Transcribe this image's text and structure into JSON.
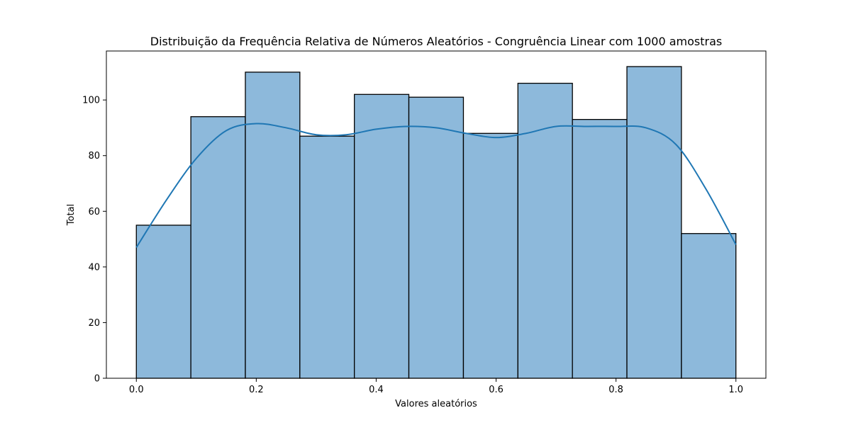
{
  "chart_data": {
    "type": "bar",
    "title": "Distribuição da Frequência Relativa de Números Aleatórios - Congruência Linear com 1000 amostras",
    "xlabel": "Valores aleatórios",
    "ylabel": "Total",
    "bins": [
      {
        "x0": 0.0,
        "x1": 0.0909,
        "value": 55
      },
      {
        "x0": 0.0909,
        "x1": 0.1818,
        "value": 94
      },
      {
        "x0": 0.1818,
        "x1": 0.2727,
        "value": 110
      },
      {
        "x0": 0.2727,
        "x1": 0.3636,
        "value": 87
      },
      {
        "x0": 0.3636,
        "x1": 0.4545,
        "value": 102
      },
      {
        "x0": 0.4545,
        "x1": 0.5455,
        "value": 101
      },
      {
        "x0": 0.5455,
        "x1": 0.6364,
        "value": 88
      },
      {
        "x0": 0.6364,
        "x1": 0.7273,
        "value": 106
      },
      {
        "x0": 0.7273,
        "x1": 0.8182,
        "value": 93
      },
      {
        "x0": 0.8182,
        "x1": 0.9091,
        "value": 112
      },
      {
        "x0": 0.9091,
        "x1": 1.0,
        "value": 52
      }
    ],
    "kde": {
      "x": [
        0.0,
        0.05,
        0.1,
        0.15,
        0.2,
        0.25,
        0.3,
        0.35,
        0.4,
        0.45,
        0.5,
        0.55,
        0.6,
        0.65,
        0.7,
        0.75,
        0.8,
        0.85,
        0.9,
        0.95,
        1.0
      ],
      "y": [
        47,
        64,
        79,
        89,
        91.5,
        90,
        87.5,
        87.5,
        89.5,
        90.5,
        90,
        88,
        86.5,
        88,
        90.5,
        90.5,
        90.5,
        90,
        84,
        68,
        48
      ]
    },
    "xlim": [
      -0.05,
      1.05
    ],
    "ylim": [
      0,
      117.6
    ],
    "xticks": [
      0.0,
      0.2,
      0.4,
      0.6,
      0.8,
      1.0
    ],
    "xtick_labels": [
      "0.0",
      "0.2",
      "0.4",
      "0.6",
      "0.8",
      "1.0"
    ],
    "yticks": [
      0,
      20,
      40,
      60,
      80,
      100
    ],
    "ytick_labels": [
      "0",
      "20",
      "40",
      "60",
      "80",
      "100"
    ],
    "bar_color": "#8db9db",
    "bar_edge_color": "#000000",
    "kde_color": "#1f77b4",
    "grid": false,
    "legend": "none"
  }
}
